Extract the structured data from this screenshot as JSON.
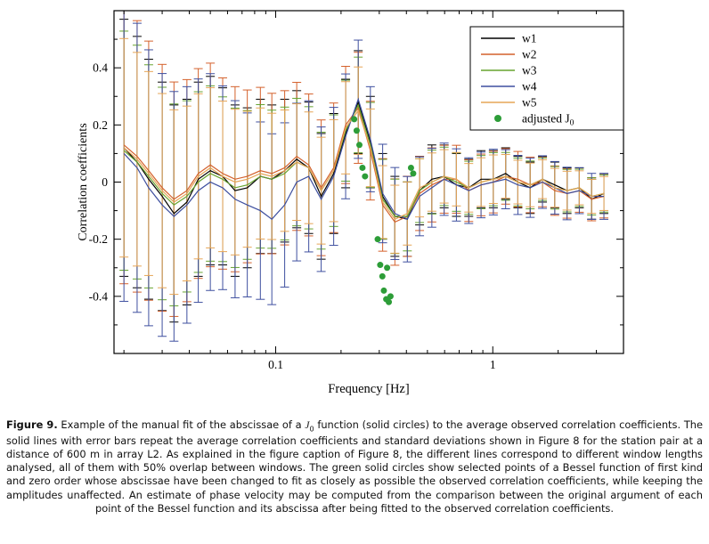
{
  "figure": {
    "caption": {
      "label": "Figure 9.",
      "before_j": " Example of the manual fit of the abscissae of a ",
      "j_symbol": "J",
      "j_subscript": "0",
      "after_j": " function (solid circles) to the average observed correlation coefficients. The solid lines with error bars repeat the average correlation coefficients and standard deviations shown in Figure 8 for the station pair at a distance of 600 m in array L2. As explained in the figure caption of Figure 8, the different lines correspond to different window lengths analysed, all of them with 50% overlap between windows. The green solid circles show selected points of a Bessel function of first kind and zero order whose abscissae have been changed to fit as closely as possible the observed correlation coefficients, while keeping the amplitudes unaffected. An estimate of phase velocity may be computed from the comparison between the original argument of each point of the Bessel function and its abscissa after being fitted to the observed correlation coefficients."
    }
  },
  "chart_data": {
    "type": "line",
    "title": "",
    "xlabel": "Frequency [Hz]",
    "ylabel": "Correlation coefficients",
    "x_scale": "log",
    "xlim": [
      0.018,
      4.0
    ],
    "ylim": [
      -0.6,
      0.6
    ],
    "x_major_ticks": [
      0.1,
      1
    ],
    "x_major_tick_labels": [
      "0.1",
      "1"
    ],
    "y_major_ticks": [
      -0.4,
      -0.2,
      0,
      0.2,
      0.4
    ],
    "y_major_tick_labels": [
      "-0.4",
      "-0.2",
      "0",
      "0.2",
      "0.4"
    ],
    "grid": false,
    "legend_position": "top-right",
    "frequencies": [
      0.02,
      0.023,
      0.026,
      0.03,
      0.034,
      0.039,
      0.044,
      0.05,
      0.057,
      0.065,
      0.074,
      0.085,
      0.096,
      0.11,
      0.125,
      0.142,
      0.162,
      0.185,
      0.21,
      0.24,
      0.273,
      0.311,
      0.354,
      0.404,
      0.46,
      0.524,
      0.597,
      0.68,
      0.775,
      0.883,
      1.006,
      1.146,
      1.305,
      1.487,
      1.694,
      1.93,
      2.198,
      2.504,
      2.853,
      3.25
    ],
    "std": [
      0.45,
      0.44,
      0.42,
      0.4,
      0.38,
      0.36,
      0.34,
      0.33,
      0.31,
      0.3,
      0.28,
      0.27,
      0.26,
      0.25,
      0.24,
      0.23,
      0.22,
      0.21,
      0.19,
      0.18,
      0.16,
      0.15,
      0.14,
      0.13,
      0.12,
      0.12,
      0.11,
      0.11,
      0.1,
      0.1,
      0.1,
      0.09,
      0.09,
      0.09,
      0.08,
      0.08,
      0.08,
      0.07,
      0.07,
      0.07
    ],
    "series": [
      {
        "name": "w1",
        "color": "#000000",
        "std_scale": 1.0,
        "values": [
          0.12,
          0.07,
          0.01,
          -0.05,
          -0.11,
          -0.07,
          0.01,
          0.04,
          0.02,
          -0.03,
          -0.02,
          0.02,
          0.01,
          0.04,
          0.08,
          0.05,
          -0.05,
          0.03,
          0.17,
          0.28,
          0.14,
          -0.05,
          -0.12,
          -0.13,
          -0.03,
          0.01,
          0.02,
          -0.01,
          -0.02,
          0.01,
          0.01,
          0.03,
          0.0,
          -0.02,
          0.01,
          -0.01,
          -0.03,
          -0.02,
          -0.06,
          -0.04
        ]
      },
      {
        "name": "w2",
        "color": "#d4612c",
        "std_scale": 1.08,
        "values": [
          0.13,
          0.09,
          0.04,
          -0.02,
          -0.06,
          -0.03,
          0.03,
          0.06,
          0.03,
          0.01,
          0.02,
          0.04,
          0.03,
          0.05,
          0.09,
          0.06,
          -0.02,
          0.05,
          0.2,
          0.26,
          0.11,
          -0.08,
          -0.14,
          -0.12,
          -0.04,
          -0.01,
          0.01,
          0.01,
          -0.03,
          -0.01,
          0.0,
          0.02,
          0.01,
          -0.01,
          0.0,
          -0.03,
          -0.04,
          -0.03,
          -0.06,
          -0.05
        ]
      },
      {
        "name": "w3",
        "color": "#67a32f",
        "std_scale": 0.93,
        "values": [
          0.11,
          0.07,
          0.02,
          -0.04,
          -0.08,
          -0.05,
          0.0,
          0.03,
          0.01,
          -0.02,
          -0.01,
          0.02,
          0.01,
          0.03,
          0.07,
          0.05,
          -0.03,
          0.04,
          0.18,
          0.27,
          0.13,
          -0.06,
          -0.12,
          -0.12,
          -0.03,
          0.0,
          0.02,
          0.0,
          -0.02,
          0.0,
          0.01,
          0.02,
          0.0,
          -0.01,
          0.01,
          -0.02,
          -0.03,
          -0.02,
          -0.05,
          -0.04
        ]
      },
      {
        "name": "w4",
        "color": "#3e4f9f",
        "std_scale": 1.15,
        "values": [
          0.1,
          0.05,
          -0.02,
          -0.08,
          -0.12,
          -0.08,
          -0.03,
          0.0,
          -0.02,
          -0.06,
          -0.08,
          -0.1,
          -0.13,
          -0.08,
          0.0,
          0.02,
          -0.06,
          0.02,
          0.16,
          0.29,
          0.15,
          -0.04,
          -0.11,
          -0.13,
          -0.05,
          -0.02,
          0.01,
          -0.01,
          -0.03,
          -0.01,
          0.0,
          0.01,
          -0.01,
          -0.02,
          0.0,
          -0.02,
          -0.04,
          -0.03,
          -0.05,
          -0.05
        ]
      },
      {
        "name": "w5",
        "color": "#e6a556",
        "std_scale": 0.85,
        "values": [
          0.12,
          0.08,
          0.03,
          -0.03,
          -0.07,
          -0.04,
          0.02,
          0.05,
          0.02,
          0.0,
          0.01,
          0.03,
          0.02,
          0.04,
          0.07,
          0.05,
          -0.03,
          0.04,
          0.19,
          0.25,
          0.12,
          -0.07,
          -0.13,
          -0.11,
          -0.02,
          0.0,
          0.02,
          0.01,
          -0.02,
          0.0,
          0.01,
          0.02,
          0.0,
          -0.01,
          0.01,
          -0.02,
          -0.03,
          -0.02,
          -0.05,
          -0.04
        ]
      }
    ],
    "scatter": {
      "name": "adjusted J",
      "name_subscript": "0",
      "color": "#2d9d38",
      "points": [
        [
          0.23,
          0.22
        ],
        [
          0.236,
          0.18
        ],
        [
          0.243,
          0.13
        ],
        [
          0.251,
          0.05
        ],
        [
          0.258,
          0.02
        ],
        [
          0.295,
          -0.2
        ],
        [
          0.303,
          -0.29
        ],
        [
          0.31,
          -0.33
        ],
        [
          0.326,
          -0.3
        ],
        [
          0.315,
          -0.38
        ],
        [
          0.323,
          -0.41
        ],
        [
          0.332,
          -0.42
        ],
        [
          0.338,
          -0.4
        ],
        [
          0.42,
          0.05
        ],
        [
          0.43,
          0.03
        ]
      ]
    }
  }
}
